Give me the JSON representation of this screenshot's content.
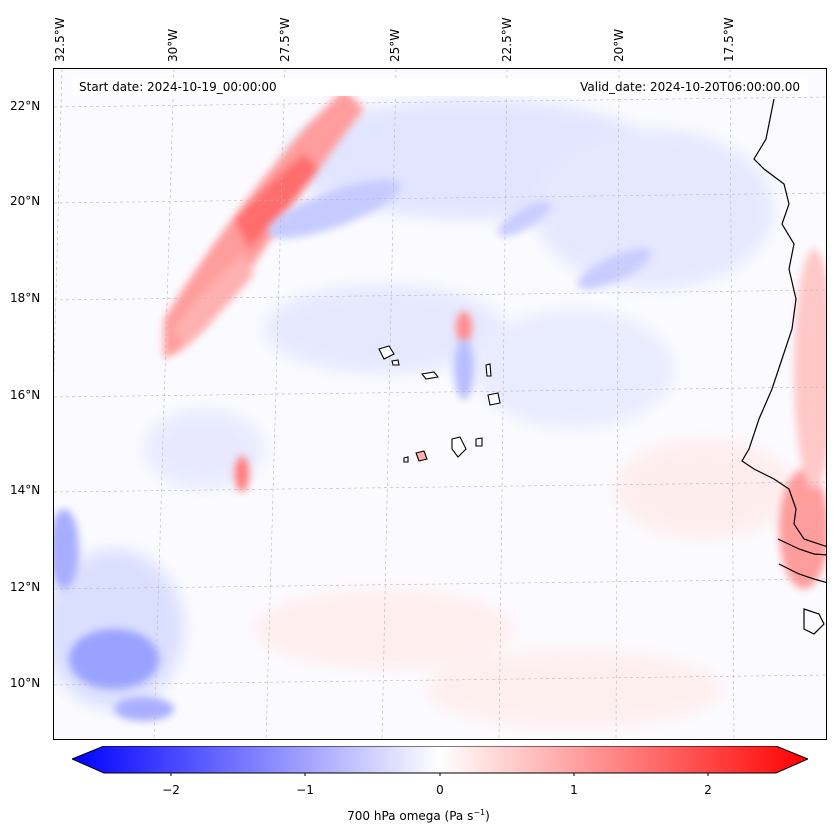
{
  "map": {
    "start_date": "Start date: 2024-10-19_00:00:00",
    "valid_date": "Valid_date: 2024-10-20T06:00:00.00",
    "longitude_labels": [
      "32.5°W",
      "30°W",
      "27.5°W",
      "25°W",
      "22.5°W",
      "20°W",
      "17.5°W"
    ],
    "latitude_labels": [
      "22°N",
      "20°N",
      "18°N",
      "16°N",
      "14°N",
      "12°N",
      "10°N"
    ]
  },
  "colorbar": {
    "label_main": "700 hPa omega (Pa s",
    "label_exp": "−1",
    "label_close": ")",
    "ticks": [
      "−2",
      "−1",
      "0",
      "1",
      "2"
    ],
    "range": [
      -2.7,
      2.7
    ],
    "colors": {
      "negative": "#0000ff",
      "neutral": "#ffffff",
      "positive": "#ff0000"
    }
  }
}
